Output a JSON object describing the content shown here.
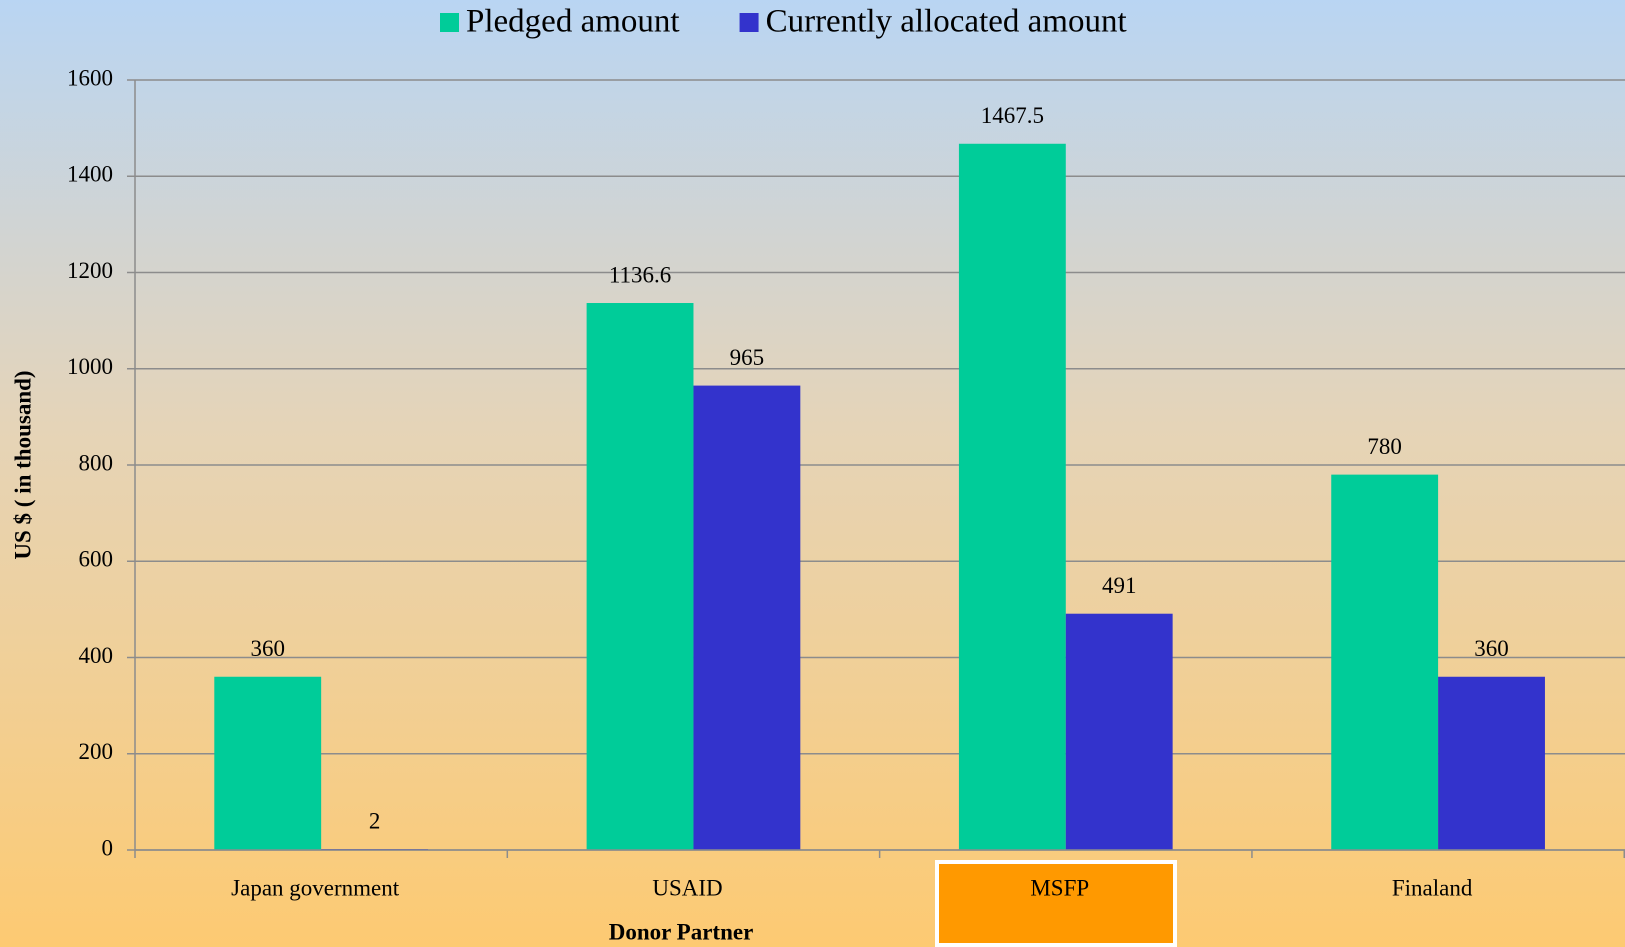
{
  "chart_data": {
    "type": "bar",
    "x_label": "Donor Partner",
    "y_label": "US $ ( in thousand)",
    "categories": [
      "Japan  government",
      "USAID",
      "MSFP",
      "Finaland"
    ],
    "series": [
      {
        "name": "Pledged amount",
        "color": "#00cc99",
        "values": [
          360,
          1136.6,
          1467.5,
          780
        ]
      },
      {
        "name": "Currently allocated amount",
        "color": "#3333cc",
        "values": [
          2,
          965,
          491,
          360
        ]
      }
    ],
    "ylim": [
      0,
      1600
    ],
    "yticks": [
      0,
      200,
      400,
      600,
      800,
      1000,
      1200,
      1400,
      1600
    ],
    "grid": true,
    "legend": "top"
  }
}
